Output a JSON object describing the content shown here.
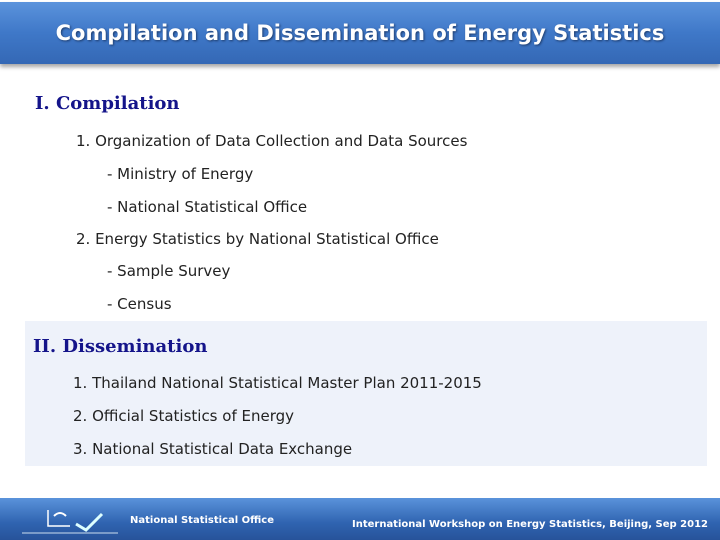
{
  "header": {
    "title": "Compilation and Dissemination of Energy Statistics"
  },
  "compilation": {
    "heading": "I. Compilation",
    "items": [
      "1. Organization of Data Collection and Data Sources",
      "- Ministry of Energy",
      "- National Statistical Office",
      "2. Energy Statistics by National Statistical Office",
      "- Sample Survey",
      "- Census"
    ]
  },
  "dissemination": {
    "heading": "II. Dissemination",
    "items": [
      "1. Thailand National Statistical Master Plan 2011-2015",
      "2. Official Statistics of Energy",
      "3. National Statistical Data Exchange"
    ]
  },
  "footer": {
    "org": "National  Statistical Office",
    "event": "International Workshop on Energy Statistics, Beijing, Sep 2012",
    "logo_icon": "nso-logo-icon"
  },
  "colors": {
    "heading": "#14148a",
    "header_bg": "#3f78c8",
    "panel_bg": "#eef2fa"
  }
}
